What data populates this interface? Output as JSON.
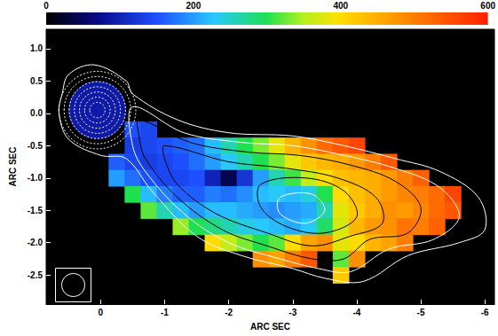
{
  "chart_data": {
    "type": "heatmap",
    "xlabel": "ARC SEC",
    "ylabel": "ARC SEC",
    "xlim": [
      0.85,
      -6.15
    ],
    "ylim": [
      -2.95,
      1.3
    ],
    "xticks": [
      0,
      -1,
      -2,
      -3,
      -4,
      -5,
      -6
    ],
    "yticks": [
      -2.5,
      {
        "value": -2,
        "label": "-2.0"
      },
      -1.5,
      {
        "value": -1,
        "label": "-1.0"
      },
      -0.5,
      {
        "value": 0,
        "label": "0.0"
      },
      0.5,
      {
        "value": 1,
        "label": "1.0"
      }
    ],
    "colorbar": {
      "range": [
        0,
        600
      ],
      "ticks": [
        0,
        200,
        400,
        600
      ]
    },
    "x": [
      -0.25,
      -0.5,
      -0.75,
      -1.0,
      -1.25,
      -1.5,
      -1.75,
      -2.0,
      -2.25,
      -2.5,
      -2.75,
      -3.0,
      -3.25,
      -3.5,
      -3.75,
      -4.0,
      -4.25,
      -4.5,
      -4.75,
      -5.0,
      -5.25,
      -5.5,
      -5.75
    ],
    "y": [
      -0.25,
      -0.5,
      -0.75,
      -1.0,
      -1.25,
      -1.5,
      -1.75,
      -2.0,
      -2.25,
      -2.5
    ],
    "values": [
      [
        null,
        150,
        140,
        null,
        null,
        null,
        null,
        null,
        null,
        null,
        null,
        null,
        null,
        null,
        null,
        null,
        null,
        null,
        null,
        null,
        null,
        null,
        null
      ],
      [
        null,
        130,
        140,
        150,
        160,
        170,
        220,
        260,
        300,
        330,
        380,
        440,
        480,
        520,
        540,
        560,
        null,
        null,
        null,
        null,
        null,
        null,
        null
      ],
      [
        160,
        140,
        130,
        140,
        150,
        170,
        200,
        230,
        260,
        300,
        330,
        380,
        420,
        440,
        450,
        470,
        500,
        540,
        null,
        null,
        null,
        null,
        null
      ],
      [
        200,
        170,
        150,
        140,
        140,
        150,
        100,
        40,
        120,
        200,
        260,
        310,
        360,
        400,
        430,
        440,
        450,
        470,
        500,
        530,
        null,
        null,
        null
      ],
      [
        null,
        300,
        220,
        180,
        160,
        160,
        180,
        170,
        190,
        220,
        230,
        220,
        240,
        300,
        400,
        430,
        450,
        470,
        490,
        500,
        520,
        560,
        null
      ],
      [
        null,
        null,
        320,
        260,
        220,
        200,
        220,
        220,
        210,
        200,
        190,
        200,
        210,
        260,
        380,
        420,
        450,
        480,
        470,
        490,
        520,
        540,
        null
      ],
      [
        null,
        null,
        null,
        null,
        340,
        300,
        280,
        260,
        240,
        230,
        220,
        210,
        230,
        290,
        370,
        440,
        470,
        480,
        510,
        500,
        530,
        null,
        null
      ],
      [
        null,
        null,
        null,
        null,
        null,
        null,
        400,
        360,
        330,
        300,
        320,
        400,
        460,
        480,
        380,
        400,
        440,
        460,
        500,
        null,
        null,
        null,
        null
      ],
      [
        null,
        null,
        null,
        null,
        null,
        null,
        null,
        null,
        null,
        480,
        460,
        500,
        540,
        null,
        320,
        480,
        null,
        null,
        null,
        null,
        null,
        null,
        null
      ],
      [
        null,
        null,
        null,
        null,
        null,
        null,
        null,
        null,
        null,
        null,
        null,
        null,
        null,
        null,
        420,
        null,
        null,
        null,
        null,
        null,
        null,
        null,
        null
      ]
    ],
    "core": {
      "center": [
        0.05,
        0.05
      ],
      "radius": 0.45,
      "value": 90,
      "contour_radii": [
        0.12,
        0.2,
        0.28,
        0.36,
        0.44,
        0.52,
        0.6
      ],
      "color": "white",
      "line_style": "dashed"
    },
    "contours": [
      {
        "color": "white",
        "points": [
          [
            0.65,
            0.0
          ],
          [
            0.6,
            0.3
          ],
          [
            0.5,
            0.6
          ],
          [
            0.1,
            0.75
          ],
          [
            -0.4,
            0.5
          ],
          [
            -0.5,
            0.3
          ],
          [
            -1.2,
            -0.1
          ],
          [
            -2.0,
            -0.3
          ],
          [
            -3.0,
            -0.35
          ],
          [
            -3.8,
            -0.5
          ],
          [
            -4.6,
            -0.7
          ],
          [
            -5.3,
            -0.9
          ],
          [
            -5.9,
            -1.3
          ],
          [
            -6.0,
            -1.8
          ],
          [
            -5.6,
            -2.0
          ],
          [
            -4.8,
            -2.2
          ],
          [
            -4.1,
            -2.6
          ],
          [
            -3.5,
            -2.55
          ],
          [
            -3.0,
            -2.4
          ],
          [
            -2.2,
            -2.2
          ],
          [
            -1.5,
            -1.9
          ],
          [
            -0.8,
            -1.2
          ],
          [
            -0.4,
            -0.7
          ],
          [
            0.0,
            -0.65
          ],
          [
            0.5,
            -0.4
          ]
        ]
      },
      {
        "color": "white",
        "points": [
          [
            -0.5,
            0.1
          ],
          [
            -1.3,
            -0.3
          ],
          [
            -2.2,
            -0.45
          ],
          [
            -3.0,
            -0.5
          ],
          [
            -3.8,
            -0.65
          ],
          [
            -4.6,
            -0.85
          ],
          [
            -5.3,
            -1.15
          ],
          [
            -5.6,
            -1.6
          ],
          [
            -5.2,
            -1.95
          ],
          [
            -4.5,
            -2.1
          ],
          [
            -3.9,
            -2.45
          ],
          [
            -3.4,
            -2.4
          ],
          [
            -2.8,
            -2.25
          ],
          [
            -2.0,
            -2.0
          ],
          [
            -1.3,
            -1.55
          ],
          [
            -0.7,
            -0.9
          ],
          [
            -0.5,
            -0.5
          ]
        ]
      },
      {
        "color": "black",
        "points": [
          [
            -0.6,
            -0.1
          ],
          [
            -1.4,
            -0.45
          ],
          [
            -2.3,
            -0.6
          ],
          [
            -3.1,
            -0.65
          ],
          [
            -3.9,
            -0.8
          ],
          [
            -4.6,
            -1.05
          ],
          [
            -5.0,
            -1.45
          ],
          [
            -4.8,
            -1.85
          ],
          [
            -4.2,
            -1.95
          ],
          [
            -3.8,
            -2.25
          ],
          [
            -3.3,
            -2.25
          ],
          [
            -2.6,
            -2.05
          ],
          [
            -1.9,
            -1.8
          ],
          [
            -1.2,
            -1.3
          ],
          [
            -0.7,
            -0.7
          ],
          [
            -0.6,
            -0.35
          ]
        ]
      },
      {
        "color": "black",
        "points": [
          [
            -1.0,
            -0.5
          ],
          [
            -2.0,
            -0.75
          ],
          [
            -2.9,
            -0.85
          ],
          [
            -3.7,
            -1.0
          ],
          [
            -4.3,
            -1.3
          ],
          [
            -4.4,
            -1.7
          ],
          [
            -3.9,
            -1.9
          ],
          [
            -3.3,
            -2.05
          ],
          [
            -2.6,
            -1.85
          ],
          [
            -1.8,
            -1.55
          ],
          [
            -1.2,
            -1.1
          ],
          [
            -1.0,
            -0.7
          ]
        ]
      },
      {
        "color": "black",
        "points": [
          [
            -2.5,
            -1.1
          ],
          [
            -3.2,
            -1.0
          ],
          [
            -3.8,
            -1.2
          ],
          [
            -4.0,
            -1.6
          ],
          [
            -3.5,
            -1.85
          ],
          [
            -2.9,
            -1.75
          ],
          [
            -2.5,
            -1.45
          ]
        ]
      },
      {
        "color": "white",
        "points": [
          [
            -2.8,
            -1.3
          ],
          [
            -3.3,
            -1.25
          ],
          [
            -3.5,
            -1.5
          ],
          [
            -3.2,
            -1.7
          ],
          [
            -2.8,
            -1.55
          ]
        ]
      }
    ]
  }
}
